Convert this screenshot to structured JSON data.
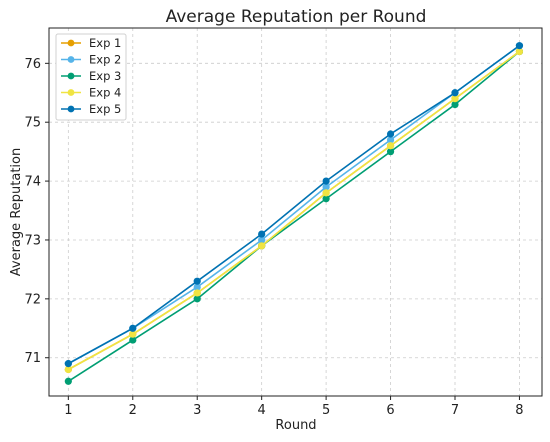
{
  "chart_data": {
    "type": "line",
    "title": "Average Reputation per Round",
    "xlabel": "Round",
    "ylabel": "Average Reputation",
    "x": [
      1,
      2,
      3,
      4,
      5,
      6,
      7,
      8
    ],
    "xlim": [
      0.7,
      8.35
    ],
    "ylim": [
      70.35,
      76.6
    ],
    "yticks": [
      71,
      72,
      73,
      74,
      75,
      76
    ],
    "grid": true,
    "legend_position": "top-left",
    "series": [
      {
        "name": "Exp 1",
        "color": "#E69F00",
        "values": [
          70.8,
          71.4,
          72.1,
          72.9,
          73.8,
          74.6,
          75.4,
          76.2
        ]
      },
      {
        "name": "Exp 2",
        "color": "#56B4E9",
        "values": [
          70.9,
          71.5,
          72.2,
          73.0,
          73.9,
          74.7,
          75.5,
          76.3
        ]
      },
      {
        "name": "Exp 3",
        "color": "#009E73",
        "values": [
          70.6,
          71.3,
          72.0,
          72.9,
          73.7,
          74.5,
          75.3,
          76.2
        ]
      },
      {
        "name": "Exp 4",
        "color": "#F0E442",
        "values": [
          70.8,
          71.4,
          72.1,
          72.9,
          73.8,
          74.6,
          75.4,
          76.2
        ]
      },
      {
        "name": "Exp 5",
        "color": "#0072B2",
        "values": [
          70.9,
          71.5,
          72.3,
          73.1,
          74.0,
          74.8,
          75.5,
          76.3
        ]
      }
    ]
  }
}
